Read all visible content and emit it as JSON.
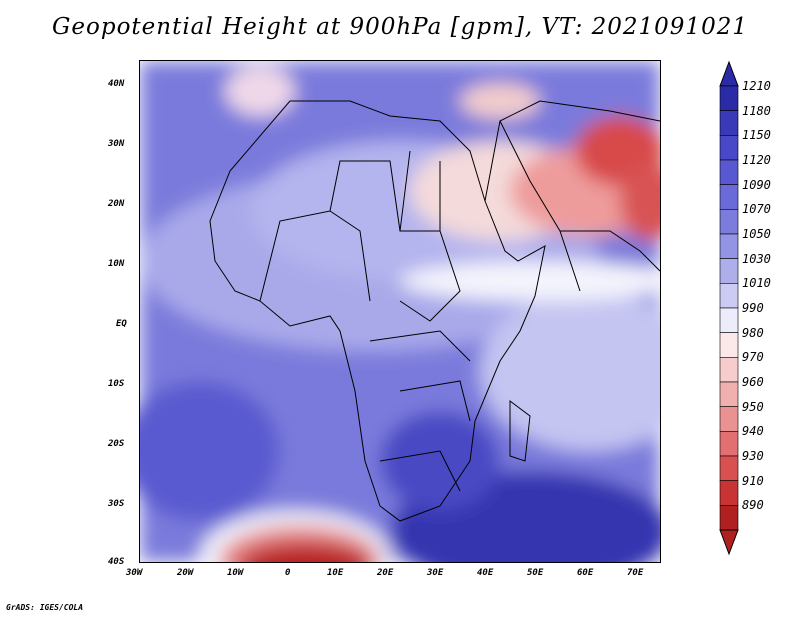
{
  "title": "Geopotential Height at 900hPa [gpm], VT: 2021091021",
  "variable": "Geopotential Height",
  "level": "900hPa",
  "units": "gpm",
  "valid_time": "2021091021",
  "credit": "GrADS: IGES/COLA",
  "x_axis_labels": [
    "30W",
    "20W",
    "10W",
    "0",
    "10E",
    "20E",
    "30E",
    "40E",
    "50E",
    "60E",
    "70E"
  ],
  "y_axis_labels": [
    "40N",
    "30N",
    "20N",
    "10N",
    "EQ",
    "10S",
    "20S",
    "30S",
    "40S"
  ],
  "colorbar": {
    "levels": [
      "1210",
      "1180",
      "1150",
      "1120",
      "1090",
      "1070",
      "1050",
      "1030",
      "1010",
      "990",
      "980",
      "970",
      "960",
      "950",
      "940",
      "930",
      "910",
      "890"
    ],
    "colors": [
      "#2b2ba8",
      "#3a3ab8",
      "#4848c8",
      "#5858d2",
      "#6a6ad8",
      "#7c7cdd",
      "#9494e4",
      "#aeaeeb",
      "#cbcbf3",
      "#ececfb",
      "#fbe8e8",
      "#f6cccc",
      "#f0b0b0",
      "#ea9292",
      "#e27070",
      "#d85050",
      "#c83434",
      "#b02020"
    ]
  },
  "palette": {
    "base": "#7474dc",
    "light": "#b8b8ee",
    "dark": "#3a3abc",
    "warm": "#e67878",
    "hot": "#c83030"
  }
}
